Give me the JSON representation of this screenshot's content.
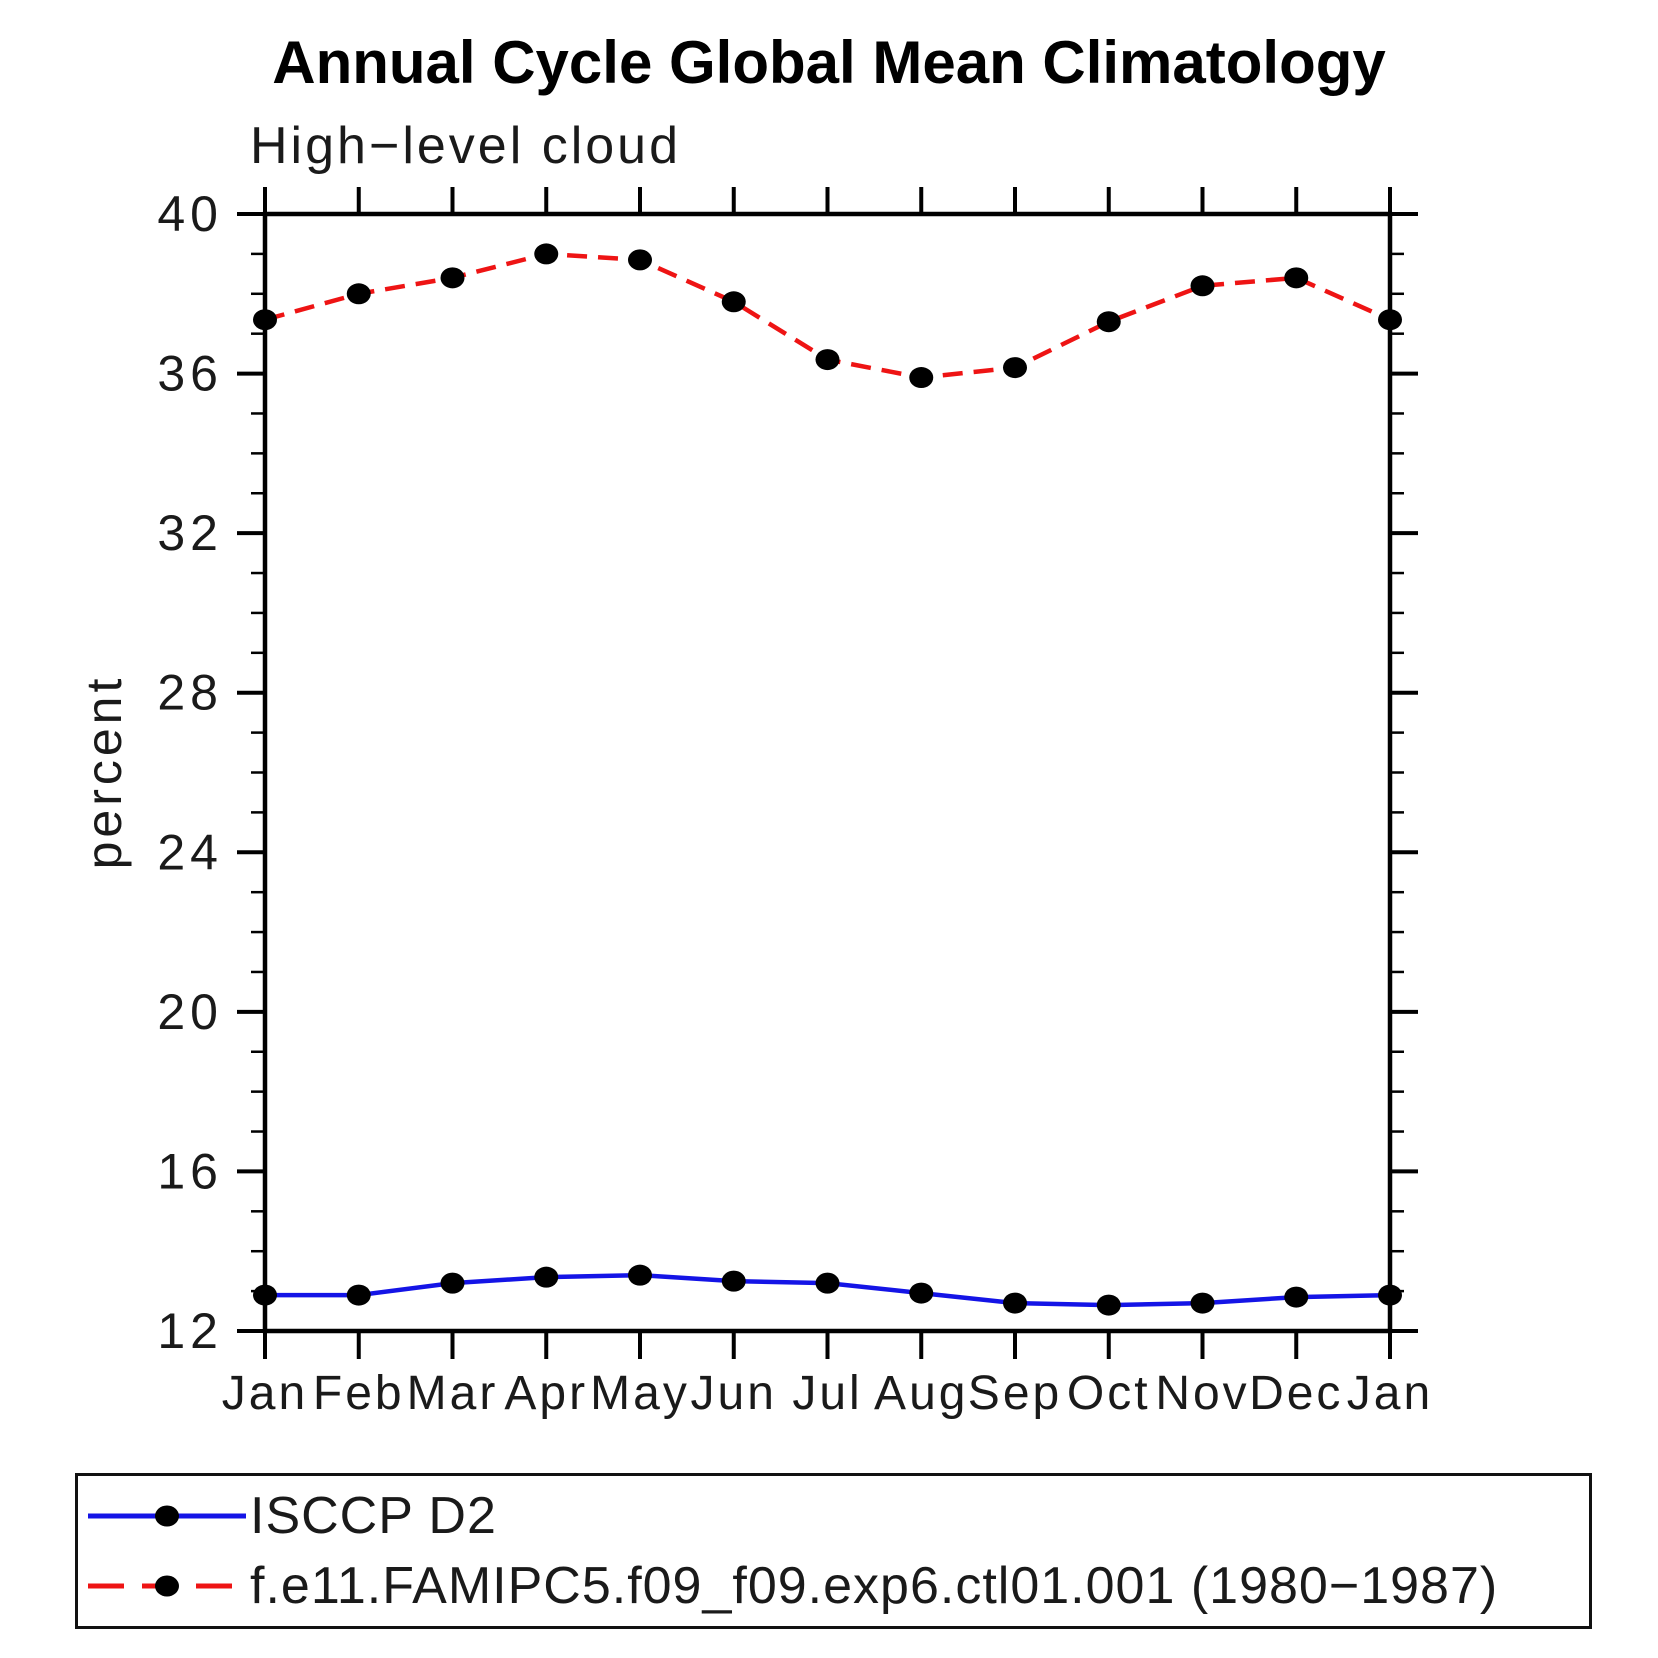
{
  "figure": {
    "title": "Annual Cycle Global Mean Climatology",
    "subtitle": "High−level cloud",
    "ylabel": "percent"
  },
  "legend": {
    "items": [
      {
        "label": "ISCCP D2",
        "color": "#1414E6",
        "dash": "none"
      },
      {
        "label": "f.e11.FAMIPC5.f09_f09.exp6.ctl01.001 (1980−1987)",
        "color": "#EE1414",
        "dash": "36 18"
      }
    ]
  },
  "chart_data": {
    "type": "line",
    "title": "Annual Cycle Global Mean Climatology",
    "subtitle": "High−level cloud",
    "xlabel": "",
    "ylabel": "percent",
    "categories": [
      "Jan",
      "Feb",
      "Mar",
      "Apr",
      "May",
      "Jun",
      "Jul",
      "Aug",
      "Sep",
      "Oct",
      "Nov",
      "Dec",
      "Jan"
    ],
    "ylim": [
      12,
      40
    ],
    "yticks": [
      12,
      16,
      20,
      24,
      28,
      32,
      36,
      40
    ],
    "minor_tick_step": 1,
    "grid": false,
    "legend_position": "bottom",
    "series": [
      {
        "name": "ISCCP D2",
        "color": "#1414E6",
        "line_style": "solid",
        "marker": "filled-circle",
        "marker_color": "#000000",
        "values": [
          12.9,
          12.9,
          13.2,
          13.35,
          13.4,
          13.25,
          13.2,
          12.95,
          12.7,
          12.65,
          12.7,
          12.85,
          12.9
        ]
      },
      {
        "name": "f.e11.FAMIPC5.f09_f09.exp6.ctl01.001 (1980−1987)",
        "color": "#EE1414",
        "line_style": "dashed",
        "marker": "filled-circle",
        "marker_color": "#000000",
        "values": [
          37.35,
          38.0,
          38.4,
          39.0,
          38.85,
          37.8,
          36.35,
          35.9,
          36.15,
          37.3,
          38.2,
          38.4,
          37.35
        ]
      }
    ]
  }
}
